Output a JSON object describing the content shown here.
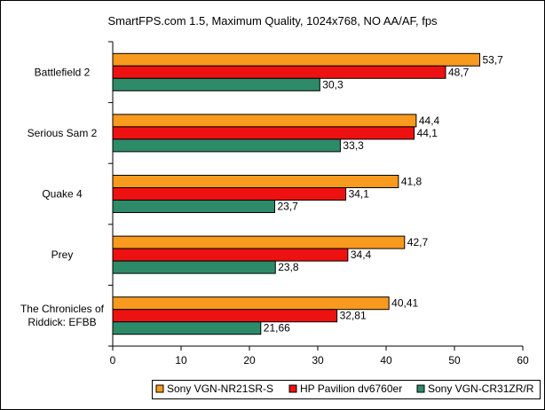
{
  "chart_data": {
    "type": "bar",
    "orientation": "horizontal",
    "title": "SmartFPS.com 1.5, Maximum Quality, 1024x768, NO AA/AF, fps",
    "categories": [
      "Battlefield 2",
      "Serious Sam 2",
      "Quake 4",
      "Prey",
      "The Chronicles of Riddick: EFBB"
    ],
    "category_lines": [
      [
        "Battlefield 2"
      ],
      [
        "Serious Sam 2"
      ],
      [
        "Quake 4"
      ],
      [
        "Prey"
      ],
      [
        "The Chronicles of",
        "Riddick: EFBB"
      ]
    ],
    "series": [
      {
        "name": "Sony VGN-NR21SR-S",
        "color": "#f79a1e",
        "values": [
          53.7,
          44.4,
          41.8,
          42.7,
          40.41
        ],
        "labels": [
          "53,7",
          "44,4",
          "41,8",
          "42,7",
          "40,41"
        ]
      },
      {
        "name": "HP Pavilion dv6760er",
        "color": "#ee1111",
        "values": [
          48.7,
          44.1,
          34.1,
          34.4,
          32.81
        ],
        "labels": [
          "48,7",
          "44,1",
          "34,1",
          "34,4",
          "32,81"
        ]
      },
      {
        "name": "Sony VGN-CR31ZR/R",
        "color": "#2e8b6a",
        "values": [
          30.3,
          33.3,
          23.7,
          23.8,
          21.66
        ],
        "labels": [
          "30,3",
          "33,3",
          "23,7",
          "23,8",
          "21,66"
        ]
      }
    ],
    "xlim": [
      0,
      60
    ],
    "xticks": [
      0,
      10,
      20,
      30,
      40,
      50,
      60
    ],
    "grid": false,
    "legend": "bottom",
    "xlabel": "",
    "ylabel": ""
  }
}
